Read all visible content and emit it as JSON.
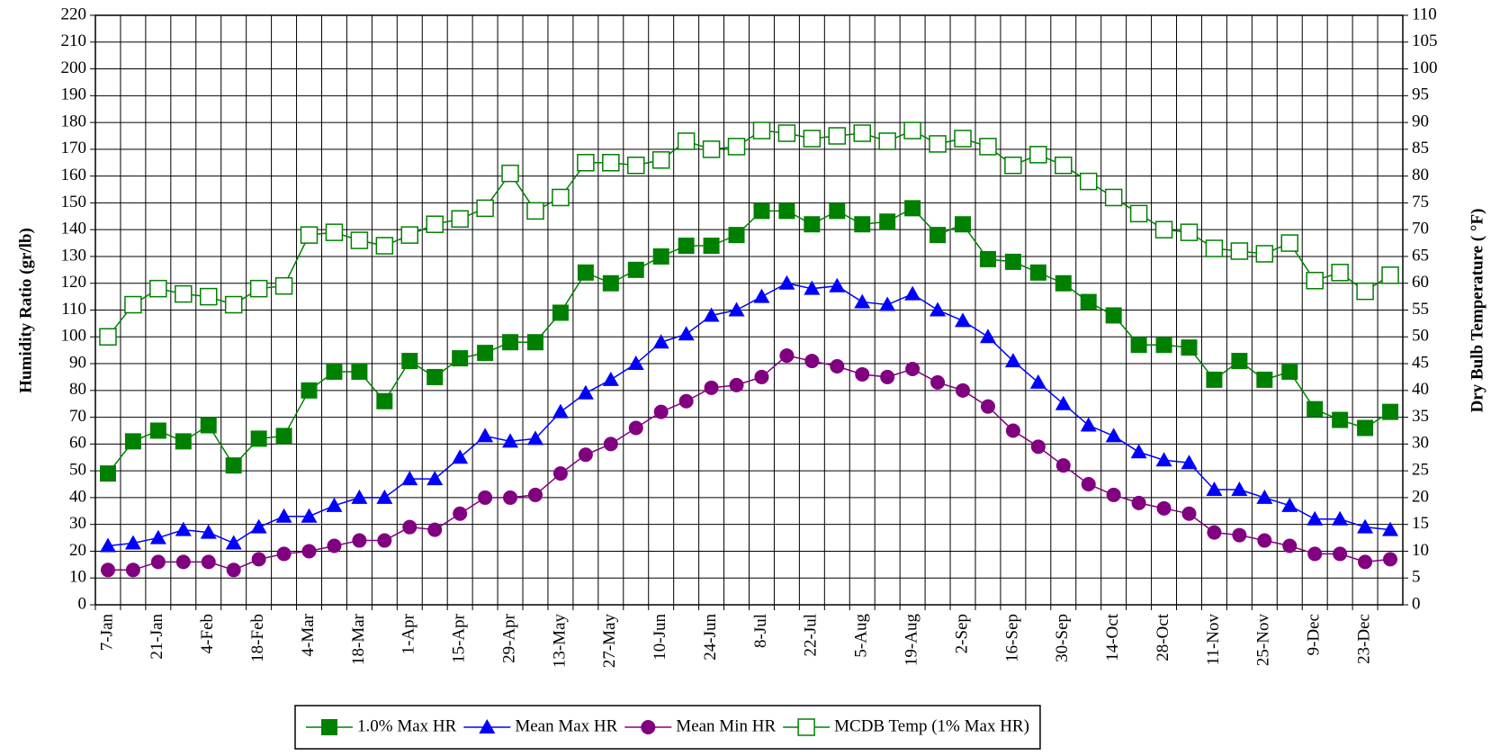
{
  "chart_data": {
    "type": "line",
    "y_label": "Humidity Ratio (gr/lb)",
    "y2_label": "Dry Bulb Temperature ( °F)",
    "categories": [
      "7-Jan",
      null,
      "21-Jan",
      null,
      "4-Feb",
      null,
      "18-Feb",
      null,
      "4-Mar",
      null,
      "18-Mar",
      null,
      "1-Apr",
      null,
      "15-Apr",
      null,
      "29-Apr",
      null,
      "13-May",
      null,
      "27-May",
      null,
      "10-Jun",
      null,
      "24-Jun",
      null,
      "8-Jul",
      null,
      "22-Jul",
      null,
      "5-Aug",
      null,
      "19-Aug",
      null,
      "2-Sep",
      null,
      "16-Sep",
      null,
      "30-Sep",
      null,
      "14-Oct",
      null,
      "28-Oct",
      null,
      "11-Nov",
      null,
      "25-Nov",
      null,
      "9-Dec",
      null,
      "23-Dec",
      null
    ],
    "series": [
      {
        "name": "1.0% Max HR",
        "color": "#008000",
        "marker": "square",
        "axis": "y",
        "values": [
          49,
          61,
          65,
          61,
          67,
          52,
          62,
          63,
          80,
          87,
          87,
          76,
          91,
          85,
          92,
          94,
          98,
          98,
          109,
          124,
          120,
          125,
          130,
          134,
          134,
          138,
          147,
          147,
          142,
          147,
          142,
          143,
          148,
          138,
          142,
          129,
          128,
          124,
          120,
          113,
          108,
          97,
          97,
          96,
          84,
          91,
          84,
          87,
          73,
          69,
          66,
          72
        ]
      },
      {
        "name": "Mean Max HR",
        "color": "#0000ff",
        "marker": "triangle",
        "axis": "y",
        "values": [
          22,
          23,
          25,
          28,
          27,
          23,
          29,
          33,
          33,
          37,
          40,
          40,
          47,
          47,
          55,
          63,
          61,
          62,
          72,
          79,
          84,
          90,
          98,
          101,
          108,
          110,
          115,
          120,
          118,
          119,
          113,
          112,
          116,
          110,
          106,
          100,
          91,
          83,
          75,
          67,
          63,
          57,
          54,
          53,
          43,
          43,
          40,
          37,
          32,
          32,
          29,
          28
        ]
      },
      {
        "name": "Mean Min HR",
        "color": "#800080",
        "marker": "circle",
        "axis": "y",
        "values": [
          13,
          13,
          16,
          16,
          16,
          13,
          17,
          19,
          20,
          22,
          24,
          24,
          29,
          28,
          34,
          40,
          40,
          41,
          49,
          56,
          60,
          66,
          72,
          76,
          81,
          82,
          85,
          93,
          91,
          89,
          86,
          85,
          88,
          83,
          80,
          74,
          65,
          59,
          52,
          45,
          41,
          38,
          36,
          34,
          27,
          26,
          24,
          22,
          19,
          19,
          16,
          17
        ]
      },
      {
        "name": "MCDB Temp (1% Max HR)",
        "color": "#008000",
        "marker": "square-open",
        "axis": "y2",
        "values": [
          50,
          56,
          59,
          58,
          57.5,
          56,
          59,
          59.5,
          69,
          69.5,
          68,
          67,
          69,
          71,
          72,
          74,
          80.5,
          73.5,
          76,
          82.5,
          82.5,
          82,
          83,
          86.5,
          85,
          85.5,
          88.5,
          88,
          87,
          87.5,
          88,
          86.5,
          88.5,
          86,
          87,
          85.5,
          82,
          84,
          82,
          79,
          76,
          73,
          70,
          69.5,
          66.5,
          66,
          65.5,
          67.5,
          60.5,
          62,
          58.5,
          61.5
        ]
      }
    ],
    "ylim": [
      0,
      220
    ],
    "yticks": [
      0,
      10,
      20,
      30,
      40,
      50,
      60,
      70,
      80,
      90,
      100,
      110,
      120,
      130,
      140,
      150,
      160,
      170,
      180,
      190,
      200,
      210,
      220
    ],
    "y2lim": [
      0,
      110
    ],
    "y2ticks": [
      0,
      5,
      10,
      15,
      20,
      25,
      30,
      35,
      40,
      45,
      50,
      55,
      60,
      65,
      70,
      75,
      80,
      85,
      90,
      95,
      100,
      105,
      110
    ],
    "grid": true,
    "legend": "bottom"
  }
}
